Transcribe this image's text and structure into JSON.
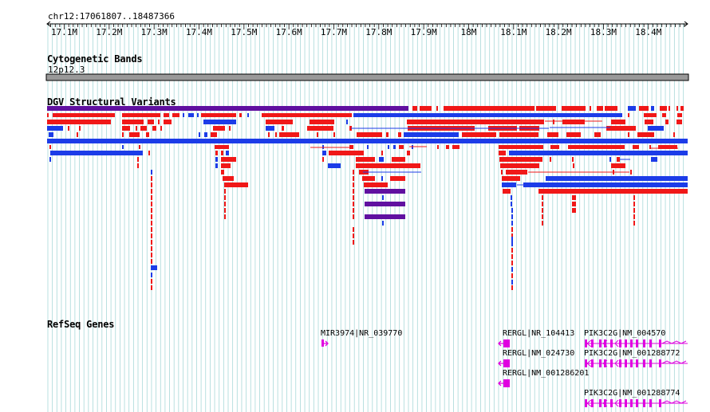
{
  "ruler": {
    "coordinates": "chr12:17061807..18487366",
    "range": [
      17061807,
      18487366
    ],
    "ticks": [
      "17.1M",
      "17.2M",
      "17.3M",
      "17.4M",
      "17.5M",
      "17.6M",
      "17.7M",
      "17.8M",
      "17.9M",
      "18M",
      "18.1M",
      "18.2M",
      "18.3M",
      "18.4M"
    ],
    "tick_values": [
      17100000,
      17200000,
      17300000,
      17400000,
      17500000,
      17600000,
      17700000,
      17800000,
      17900000,
      18000000,
      18100000,
      18200000,
      18300000,
      18400000
    ]
  },
  "tracks": {
    "cytoband": {
      "title": "Cytogenetic Bands",
      "band": "12p12.3"
    },
    "dgv": {
      "title": "DGV Structural Variants"
    },
    "refseq": {
      "title": "RefSeq Genes",
      "genes": [
        {
          "name": "MIR3974|NR_039770",
          "strand": "+",
          "start": 17641800,
          "end": 17660000
        },
        {
          "name": "RERGL|NR_104413",
          "strand": "-",
          "start": 18095000,
          "end": 18115000
        },
        {
          "name": "RERGL|NM_024730",
          "strand": "-",
          "start": 18095000,
          "end": 18115000
        },
        {
          "name": "RERGL|NM_001286201",
          "strand": "-",
          "start": 18095000,
          "end": 18115000
        },
        {
          "name": "PIK3C2G|NM_004570",
          "strand": "+",
          "start": 18280000,
          "end": 18487366
        },
        {
          "name": "PIK3C2G|NM_001288772",
          "strand": "+",
          "start": 18280000,
          "end": 18487366
        },
        {
          "name": "PIK3C2G|NM_001288774",
          "strand": "+",
          "start": 18280000,
          "end": 18487366
        }
      ]
    }
  },
  "colors": {
    "gain": "#f01818",
    "loss": "#1c3ce8",
    "gain_loss": "#6010a0",
    "gene": "#e000e0",
    "grid": "#a8d8d8",
    "band": "#999999"
  }
}
